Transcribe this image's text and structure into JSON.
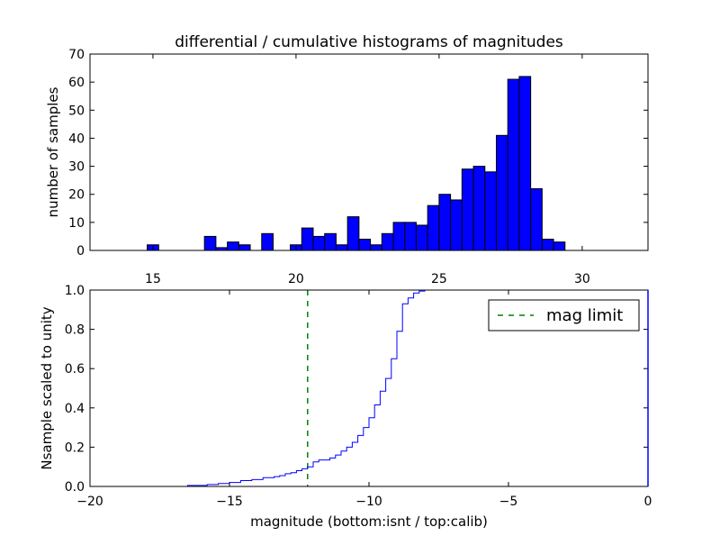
{
  "chart_data": [
    {
      "type": "bar",
      "panel": "top",
      "title": "differential / cumulative histograms of magnitudes",
      "xlabel": "",
      "ylabel": "number of samples",
      "xlim": [
        12.8,
        32.3
      ],
      "ylim": [
        0,
        70
      ],
      "xticks": [
        15,
        20,
        25,
        30
      ],
      "yticks": [
        0,
        10,
        20,
        30,
        40,
        50,
        60,
        70
      ],
      "bar_color": "#0000ff",
      "bin_width": 0.4,
      "bins": [
        {
          "left": 14.8,
          "value": 2
        },
        {
          "left": 16.8,
          "value": 5
        },
        {
          "left": 17.2,
          "value": 1
        },
        {
          "left": 17.6,
          "value": 3
        },
        {
          "left": 18.0,
          "value": 2
        },
        {
          "left": 18.8,
          "value": 6
        },
        {
          "left": 19.8,
          "value": 2
        },
        {
          "left": 20.2,
          "value": 8
        },
        {
          "left": 20.6,
          "value": 5
        },
        {
          "left": 21.0,
          "value": 6
        },
        {
          "left": 21.4,
          "value": 2
        },
        {
          "left": 21.8,
          "value": 12
        },
        {
          "left": 22.2,
          "value": 4
        },
        {
          "left": 22.6,
          "value": 2
        },
        {
          "left": 23.0,
          "value": 6
        },
        {
          "left": 23.4,
          "value": 10
        },
        {
          "left": 23.8,
          "value": 10
        },
        {
          "left": 24.2,
          "value": 9
        },
        {
          "left": 24.6,
          "value": 16
        },
        {
          "left": 25.0,
          "value": 20
        },
        {
          "left": 25.4,
          "value": 18
        },
        {
          "left": 25.8,
          "value": 29
        },
        {
          "left": 26.2,
          "value": 30
        },
        {
          "left": 26.6,
          "value": 28
        },
        {
          "left": 27.0,
          "value": 41
        },
        {
          "left": 27.4,
          "value": 61
        },
        {
          "left": 27.8,
          "value": 62
        },
        {
          "left": 28.2,
          "value": 22
        },
        {
          "left": 28.6,
          "value": 4
        },
        {
          "left": 29.0,
          "value": 3
        }
      ]
    },
    {
      "type": "line",
      "panel": "bottom",
      "title": "",
      "xlabel": "magnitude (bottom:isnt / top:calib)",
      "ylabel": "Nsample scaled to unity",
      "xlim": [
        -20,
        0
      ],
      "ylim": [
        0,
        1
      ],
      "xticks": [
        -20,
        -15,
        -10,
        -5,
        0
      ],
      "yticks": [
        0.0,
        0.2,
        0.4,
        0.6,
        0.8,
        1.0
      ],
      "step_color": "#0000ff",
      "cumulative_step": {
        "x": [
          -20.0,
          -16.5,
          -15.8,
          -15.4,
          -15.0,
          -14.6,
          -14.2,
          -13.8,
          -13.4,
          -13.2,
          -13.0,
          -12.8,
          -12.6,
          -12.4,
          -12.2,
          -12.0,
          -11.8,
          -11.4,
          -11.2,
          -11.0,
          -10.8,
          -10.6,
          -10.4,
          -10.2,
          -10.0,
          -9.8,
          -9.6,
          -9.4,
          -9.2,
          -9.0,
          -8.8,
          -8.6,
          -8.4,
          -8.2,
          -8.0,
          -7.8,
          -7.6
        ],
        "y": [
          0.0,
          0.005,
          0.01,
          0.015,
          0.02,
          0.03,
          0.035,
          0.045,
          0.05,
          0.055,
          0.065,
          0.07,
          0.08,
          0.09,
          0.1,
          0.125,
          0.135,
          0.145,
          0.16,
          0.18,
          0.2,
          0.225,
          0.26,
          0.3,
          0.35,
          0.415,
          0.485,
          0.55,
          0.65,
          0.79,
          0.93,
          0.96,
          0.985,
          0.995,
          1.0,
          1.0,
          1.0
        ]
      },
      "reference_line": {
        "name": "mag limit",
        "x": -12.2,
        "color": "#008000"
      },
      "legend": {
        "label": "mag limit",
        "placement": "top-right"
      }
    }
  ]
}
